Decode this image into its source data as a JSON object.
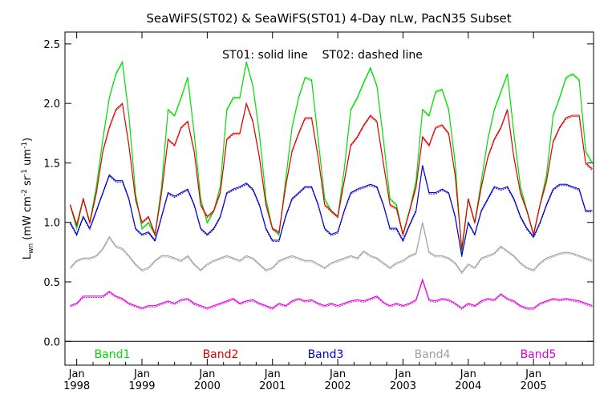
{
  "chart_data": {
    "type": "line",
    "title": "SeaWiFS(ST02) & SeaWiFS(ST01) 4-Day nLw, PacN35 Subset",
    "annotation": "ST01: solid line    ST02: dashed line",
    "ylabel": "Lwn (mW cm-2 sr-1 um-1)",
    "ylabel_parts": {
      "main": "L",
      "sub": "wn",
      "units_open": " (mW cm",
      "exp1": "-2",
      "mid1": " sr",
      "exp2": "-1",
      "mid2": " um",
      "exp3": "-1",
      "units_close": ")"
    },
    "xlim": [
      1997.82,
      2005.92
    ],
    "ylim": [
      -0.2,
      2.6
    ],
    "y_ticks": [
      0.0,
      0.5,
      1.0,
      1.5,
      2.0,
      2.5
    ],
    "y_tick_labels": [
      "0.0",
      "0.5",
      "1.0",
      "1.5",
      "2.0",
      "2.5"
    ],
    "x_ticks": [
      1998,
      1999,
      2000,
      2001,
      2002,
      2003,
      2004,
      2005
    ],
    "x_tick_month": "Jan",
    "x_tick_years": [
      "1998",
      "1999",
      "2000",
      "2001",
      "2002",
      "2003",
      "2004",
      "2005"
    ],
    "zero_line": true,
    "grid": false,
    "legend_position": "bottom",
    "series": [
      {
        "name": "Band1",
        "color": "#00dd00",
        "x": [
          1997.9,
          1998.0,
          1998.1,
          1998.2,
          1998.3,
          1998.4,
          1998.5,
          1998.6,
          1998.7,
          1998.8,
          1998.9,
          1999.0,
          1999.1,
          1999.2,
          1999.3,
          1999.4,
          1999.5,
          1999.6,
          1999.7,
          1999.8,
          1999.9,
          2000.0,
          2000.1,
          2000.2,
          2000.3,
          2000.4,
          2000.5,
          2000.6,
          2000.7,
          2000.8,
          2000.9,
          2001.0,
          2001.1,
          2001.2,
          2001.3,
          2001.4,
          2001.5,
          2001.6,
          2001.7,
          2001.8,
          2001.9,
          2002.0,
          2002.1,
          2002.2,
          2002.3,
          2002.4,
          2002.5,
          2002.6,
          2002.7,
          2002.8,
          2002.9,
          2003.0,
          2003.1,
          2003.2,
          2003.3,
          2003.4,
          2003.5,
          2003.6,
          2003.7,
          2003.8,
          2003.9,
          2004.0,
          2004.1,
          2004.2,
          2004.3,
          2004.4,
          2004.5,
          2004.6,
          2004.7,
          2004.8,
          2004.9,
          2005.0,
          2005.1,
          2005.2,
          2005.3,
          2005.4,
          2005.5,
          2005.6,
          2005.7,
          2005.8,
          2005.9
        ],
        "y": [
          1.15,
          0.95,
          1.2,
          1.0,
          1.3,
          1.7,
          2.05,
          2.25,
          2.35,
          1.9,
          1.25,
          0.95,
          1.0,
          0.9,
          1.3,
          1.95,
          1.9,
          2.05,
          2.22,
          1.75,
          1.2,
          1.0,
          1.1,
          1.3,
          1.95,
          2.05,
          2.05,
          2.35,
          2.15,
          1.75,
          1.2,
          0.95,
          0.9,
          1.35,
          1.8,
          2.05,
          2.22,
          2.2,
          1.7,
          1.2,
          1.1,
          1.05,
          1.45,
          1.95,
          2.05,
          2.18,
          2.3,
          2.15,
          1.7,
          1.2,
          1.15,
          0.9,
          1.1,
          1.35,
          1.95,
          1.9,
          2.1,
          2.12,
          1.95,
          1.5,
          0.75,
          1.2,
          1.0,
          1.35,
          1.7,
          1.95,
          2.1,
          2.25,
          1.75,
          1.3,
          1.1,
          0.9,
          1.15,
          1.4,
          1.9,
          2.05,
          2.22,
          2.25,
          2.2,
          1.6,
          1.5
        ]
      },
      {
        "name": "Band2",
        "color": "#dd0000",
        "x": [
          1997.9,
          1998.0,
          1998.1,
          1998.2,
          1998.3,
          1998.4,
          1998.5,
          1998.6,
          1998.7,
          1998.8,
          1998.9,
          1999.0,
          1999.1,
          1999.2,
          1999.3,
          1999.4,
          1999.5,
          1999.6,
          1999.7,
          1999.8,
          1999.9,
          2000.0,
          2000.1,
          2000.2,
          2000.3,
          2000.4,
          2000.5,
          2000.6,
          2000.7,
          2000.8,
          2000.9,
          2001.0,
          2001.1,
          2001.2,
          2001.3,
          2001.4,
          2001.5,
          2001.6,
          2001.7,
          2001.8,
          2001.9,
          2002.0,
          2002.1,
          2002.2,
          2002.3,
          2002.4,
          2002.5,
          2002.6,
          2002.7,
          2002.8,
          2002.9,
          2003.0,
          2003.1,
          2003.2,
          2003.3,
          2003.4,
          2003.5,
          2003.6,
          2003.7,
          2003.8,
          2003.9,
          2004.0,
          2004.1,
          2004.2,
          2004.3,
          2004.4,
          2004.5,
          2004.6,
          2004.7,
          2004.8,
          2004.9,
          2005.0,
          2005.1,
          2005.2,
          2005.3,
          2005.4,
          2005.5,
          2005.6,
          2005.7,
          2005.8,
          2005.9
        ],
        "y": [
          1.15,
          0.98,
          1.2,
          1.0,
          1.25,
          1.6,
          1.8,
          1.95,
          2.0,
          1.65,
          1.2,
          1.0,
          1.05,
          0.9,
          1.25,
          1.7,
          1.65,
          1.8,
          1.85,
          1.6,
          1.15,
          1.05,
          1.1,
          1.25,
          1.7,
          1.75,
          1.75,
          2.0,
          1.85,
          1.55,
          1.15,
          0.95,
          0.92,
          1.3,
          1.6,
          1.75,
          1.88,
          1.88,
          1.55,
          1.15,
          1.1,
          1.05,
          1.35,
          1.65,
          1.72,
          1.82,
          1.9,
          1.85,
          1.5,
          1.15,
          1.12,
          0.9,
          1.1,
          1.3,
          1.72,
          1.65,
          1.8,
          1.82,
          1.75,
          1.4,
          0.78,
          1.2,
          1.0,
          1.3,
          1.55,
          1.7,
          1.8,
          1.95,
          1.55,
          1.25,
          1.1,
          0.9,
          1.15,
          1.35,
          1.68,
          1.8,
          1.88,
          1.9,
          1.9,
          1.5,
          1.45
        ]
      },
      {
        "name": "Band3",
        "color": "#0000cc",
        "x": [
          1997.9,
          1998.0,
          1998.1,
          1998.2,
          1998.3,
          1998.4,
          1998.5,
          1998.6,
          1998.7,
          1998.8,
          1998.9,
          1999.0,
          1999.1,
          1999.2,
          1999.3,
          1999.4,
          1999.5,
          1999.6,
          1999.7,
          1999.8,
          1999.9,
          2000.0,
          2000.1,
          2000.2,
          2000.3,
          2000.4,
          2000.5,
          2000.6,
          2000.7,
          2000.8,
          2000.9,
          2001.0,
          2001.1,
          2001.2,
          2001.3,
          2001.4,
          2001.5,
          2001.6,
          2001.7,
          2001.8,
          2001.9,
          2002.0,
          2002.1,
          2002.2,
          2002.3,
          2002.4,
          2002.5,
          2002.6,
          2002.7,
          2002.8,
          2002.9,
          2003.0,
          2003.1,
          2003.2,
          2003.3,
          2003.4,
          2003.5,
          2003.6,
          2003.7,
          2003.8,
          2003.9,
          2004.0,
          2004.1,
          2004.2,
          2004.3,
          2004.4,
          2004.5,
          2004.6,
          2004.7,
          2004.8,
          2004.9,
          2005.0,
          2005.1,
          2005.2,
          2005.3,
          2005.4,
          2005.5,
          2005.6,
          2005.7,
          2005.8,
          2005.9
        ],
        "y": [
          1.0,
          0.9,
          1.05,
          0.95,
          1.1,
          1.25,
          1.4,
          1.35,
          1.35,
          1.2,
          0.95,
          0.9,
          0.92,
          0.85,
          1.05,
          1.25,
          1.22,
          1.25,
          1.28,
          1.15,
          0.95,
          0.9,
          0.95,
          1.05,
          1.25,
          1.28,
          1.3,
          1.33,
          1.28,
          1.15,
          0.95,
          0.85,
          0.85,
          1.05,
          1.2,
          1.25,
          1.3,
          1.3,
          1.15,
          0.95,
          0.9,
          0.92,
          1.1,
          1.25,
          1.28,
          1.3,
          1.32,
          1.3,
          1.15,
          0.95,
          0.95,
          0.85,
          0.98,
          1.1,
          1.48,
          1.25,
          1.25,
          1.28,
          1.25,
          1.05,
          0.72,
          1.0,
          0.9,
          1.1,
          1.2,
          1.3,
          1.28,
          1.3,
          1.2,
          1.05,
          0.95,
          0.88,
          1.0,
          1.15,
          1.28,
          1.32,
          1.32,
          1.3,
          1.28,
          1.1,
          1.1
        ]
      },
      {
        "name": "Band4",
        "color": "#a0a0a0",
        "x": [
          1997.9,
          1998.0,
          1998.1,
          1998.2,
          1998.3,
          1998.4,
          1998.5,
          1998.6,
          1998.7,
          1998.8,
          1998.9,
          1999.0,
          1999.1,
          1999.2,
          1999.3,
          1999.4,
          1999.5,
          1999.6,
          1999.7,
          1999.8,
          1999.9,
          2000.0,
          2000.1,
          2000.2,
          2000.3,
          2000.4,
          2000.5,
          2000.6,
          2000.7,
          2000.8,
          2000.9,
          2001.0,
          2001.1,
          2001.2,
          2001.3,
          2001.4,
          2001.5,
          2001.6,
          2001.7,
          2001.8,
          2001.9,
          2002.0,
          2002.1,
          2002.2,
          2002.3,
          2002.4,
          2002.5,
          2002.6,
          2002.7,
          2002.8,
          2002.9,
          2003.0,
          2003.1,
          2003.2,
          2003.3,
          2003.4,
          2003.5,
          2003.6,
          2003.7,
          2003.8,
          2003.9,
          2004.0,
          2004.1,
          2004.2,
          2004.3,
          2004.4,
          2004.5,
          2004.6,
          2004.7,
          2004.8,
          2004.9,
          2005.0,
          2005.1,
          2005.2,
          2005.3,
          2005.4,
          2005.5,
          2005.6,
          2005.7,
          2005.8,
          2005.9
        ],
        "y": [
          0.62,
          0.68,
          0.7,
          0.7,
          0.72,
          0.78,
          0.88,
          0.8,
          0.78,
          0.72,
          0.65,
          0.6,
          0.62,
          0.68,
          0.72,
          0.72,
          0.7,
          0.68,
          0.72,
          0.65,
          0.6,
          0.65,
          0.68,
          0.7,
          0.72,
          0.7,
          0.68,
          0.72,
          0.7,
          0.65,
          0.6,
          0.62,
          0.68,
          0.7,
          0.72,
          0.7,
          0.68,
          0.68,
          0.65,
          0.62,
          0.66,
          0.68,
          0.7,
          0.72,
          0.7,
          0.76,
          0.72,
          0.7,
          0.66,
          0.62,
          0.66,
          0.68,
          0.72,
          0.74,
          1.0,
          0.75,
          0.72,
          0.72,
          0.7,
          0.66,
          0.58,
          0.65,
          0.62,
          0.7,
          0.72,
          0.74,
          0.8,
          0.76,
          0.72,
          0.66,
          0.62,
          0.6,
          0.66,
          0.7,
          0.72,
          0.74,
          0.75,
          0.74,
          0.72,
          0.7,
          0.68
        ]
      },
      {
        "name": "Band5",
        "color": "#dd00dd",
        "x": [
          1997.9,
          1998.0,
          1998.1,
          1998.2,
          1998.3,
          1998.4,
          1998.5,
          1998.6,
          1998.7,
          1998.8,
          1998.9,
          1999.0,
          1999.1,
          1999.2,
          1999.3,
          1999.4,
          1999.5,
          1999.6,
          1999.7,
          1999.8,
          1999.9,
          2000.0,
          2000.1,
          2000.2,
          2000.3,
          2000.4,
          2000.5,
          2000.6,
          2000.7,
          2000.8,
          2000.9,
          2001.0,
          2001.1,
          2001.2,
          2001.3,
          2001.4,
          2001.5,
          2001.6,
          2001.7,
          2001.8,
          2001.9,
          2002.0,
          2002.1,
          2002.2,
          2002.3,
          2002.4,
          2002.5,
          2002.6,
          2002.7,
          2002.8,
          2002.9,
          2003.0,
          2003.1,
          2003.2,
          2003.3,
          2003.4,
          2003.5,
          2003.6,
          2003.7,
          2003.8,
          2003.9,
          2004.0,
          2004.1,
          2004.2,
          2004.3,
          2004.4,
          2004.5,
          2004.6,
          2004.7,
          2004.8,
          2004.9,
          2005.0,
          2005.1,
          2005.2,
          2005.3,
          2005.4,
          2005.5,
          2005.6,
          2005.7,
          2005.8,
          2005.9
        ],
        "y": [
          0.3,
          0.32,
          0.38,
          0.38,
          0.38,
          0.38,
          0.42,
          0.38,
          0.36,
          0.32,
          0.3,
          0.28,
          0.3,
          0.3,
          0.32,
          0.34,
          0.32,
          0.35,
          0.36,
          0.32,
          0.3,
          0.28,
          0.3,
          0.32,
          0.34,
          0.36,
          0.32,
          0.34,
          0.35,
          0.32,
          0.3,
          0.28,
          0.32,
          0.3,
          0.34,
          0.36,
          0.34,
          0.35,
          0.32,
          0.3,
          0.32,
          0.3,
          0.32,
          0.34,
          0.35,
          0.34,
          0.36,
          0.38,
          0.33,
          0.3,
          0.32,
          0.3,
          0.32,
          0.35,
          0.52,
          0.35,
          0.34,
          0.36,
          0.35,
          0.32,
          0.28,
          0.32,
          0.3,
          0.34,
          0.36,
          0.35,
          0.4,
          0.36,
          0.34,
          0.3,
          0.28,
          0.28,
          0.32,
          0.34,
          0.36,
          0.35,
          0.36,
          0.35,
          0.34,
          0.32,
          0.3
        ]
      }
    ]
  }
}
